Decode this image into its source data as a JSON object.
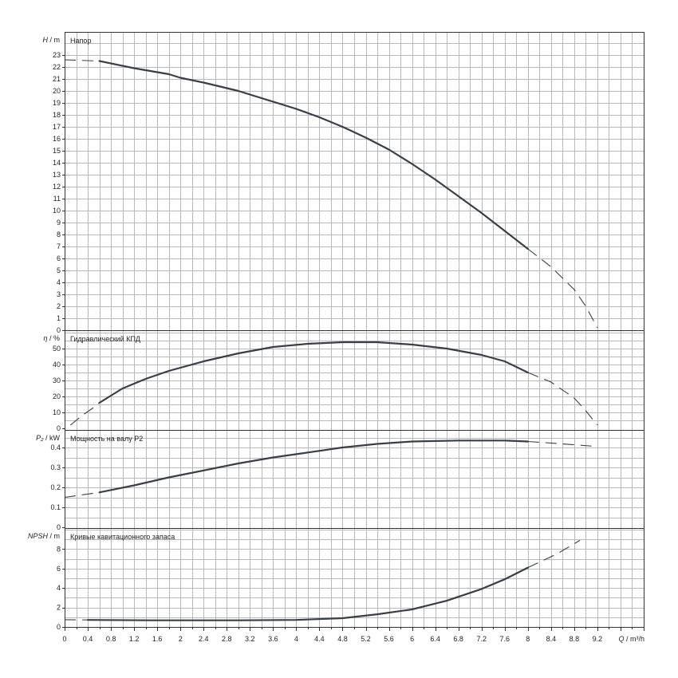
{
  "chart_data": {
    "type": "line",
    "x_axis": {
      "label_var": "Q",
      "label_unit": "m³/h",
      "range": [
        0,
        10
      ],
      "ticks": [
        "0",
        "0.4",
        "0.8",
        "1.2",
        "1.6",
        "2",
        "2.4",
        "2.8",
        "3.2",
        "3.6",
        "4",
        "4.4",
        "4.8",
        "5.2",
        "5.6",
        "6",
        "6.4",
        "6.8",
        "7.2",
        "7.6",
        "8",
        "8.4",
        "8.8",
        "9.2"
      ]
    },
    "grid": true,
    "panels": [
      {
        "key": "head",
        "title": "Напор",
        "ylabel_var": "H",
        "ylabel_unit": "m",
        "ylim": [
          0,
          25
        ],
        "yticks": [
          "0",
          "1",
          "2",
          "3",
          "4",
          "5",
          "6",
          "7",
          "8",
          "9",
          "10",
          "11",
          "12",
          "13",
          "14",
          "15",
          "16",
          "17",
          "18",
          "19",
          "20",
          "21",
          "22",
          "23"
        ],
        "series": [
          {
            "style": "dashed",
            "points": [
              [
                0,
                22.6
              ],
              [
                0.6,
                22.5
              ]
            ]
          },
          {
            "style": "solid",
            "points": [
              [
                0.6,
                22.5
              ],
              [
                1.2,
                21.9
              ],
              [
                1.8,
                21.4
              ],
              [
                2.0,
                21.1
              ],
              [
                2.4,
                20.7
              ],
              [
                3.0,
                20.0
              ],
              [
                3.6,
                19.1
              ],
              [
                4.0,
                18.5
              ],
              [
                4.4,
                17.8
              ],
              [
                4.8,
                17.0
              ],
              [
                5.2,
                16.1
              ],
              [
                5.6,
                15.1
              ],
              [
                6.0,
                13.9
              ],
              [
                6.4,
                12.6
              ],
              [
                6.8,
                11.2
              ],
              [
                7.2,
                9.8
              ],
              [
                7.6,
                8.3
              ],
              [
                8.0,
                6.8
              ]
            ]
          },
          {
            "style": "dashed",
            "points": [
              [
                8.0,
                6.8
              ],
              [
                8.4,
                5.3
              ],
              [
                8.8,
                3.4
              ],
              [
                9.0,
                2.0
              ],
              [
                9.2,
                0.2
              ]
            ]
          }
        ]
      },
      {
        "key": "efficiency",
        "title": "Гидравлический КПД",
        "ylabel_var": "η",
        "ylabel_unit": "%",
        "ylim": [
          0,
          60
        ],
        "yticks": [
          "0",
          "10",
          "20",
          "30",
          "40",
          "50"
        ],
        "series": [
          {
            "style": "dashed",
            "points": [
              [
                0.1,
                2
              ],
              [
                0.3,
                8
              ],
              [
                0.5,
                13
              ],
              [
                0.6,
                16
              ]
            ]
          },
          {
            "style": "solid",
            "points": [
              [
                0.6,
                16
              ],
              [
                1.0,
                25
              ],
              [
                1.4,
                31
              ],
              [
                1.8,
                36
              ],
              [
                2.4,
                42
              ],
              [
                3.0,
                47
              ],
              [
                3.6,
                51
              ],
              [
                4.2,
                53
              ],
              [
                4.8,
                54
              ],
              [
                5.4,
                54
              ],
              [
                6.0,
                52.5
              ],
              [
                6.6,
                50
              ],
              [
                7.2,
                46
              ],
              [
                7.6,
                42
              ],
              [
                8.0,
                35
              ]
            ]
          },
          {
            "style": "dashed",
            "points": [
              [
                8.0,
                35
              ],
              [
                8.4,
                29
              ],
              [
                8.8,
                19
              ],
              [
                9.0,
                11
              ],
              [
                9.2,
                2
              ]
            ]
          }
        ]
      },
      {
        "key": "power",
        "title": "Мощность на валу P2",
        "ylabel_var": "P₂",
        "ylabel_unit": "kW",
        "ylim": [
          0,
          0.45
        ],
        "yticks": [
          "0",
          "0.1",
          "0.2",
          "0.3",
          "0.4"
        ],
        "series": [
          {
            "style": "dashed",
            "points": [
              [
                0,
                0.15
              ],
              [
                0.6,
                0.175
              ]
            ]
          },
          {
            "style": "solid",
            "points": [
              [
                0.6,
                0.175
              ],
              [
                1.2,
                0.21
              ],
              [
                1.8,
                0.25
              ],
              [
                2.4,
                0.285
              ],
              [
                3.0,
                0.32
              ],
              [
                3.6,
                0.35
              ],
              [
                4.2,
                0.375
              ],
              [
                4.8,
                0.4
              ],
              [
                5.4,
                0.418
              ],
              [
                6.0,
                0.43
              ],
              [
                6.8,
                0.435
              ],
              [
                7.6,
                0.435
              ],
              [
                8.0,
                0.43
              ]
            ]
          },
          {
            "style": "dashed",
            "points": [
              [
                8.0,
                0.43
              ],
              [
                8.6,
                0.418
              ],
              [
                9.2,
                0.405
              ]
            ]
          }
        ]
      },
      {
        "key": "npsh",
        "title": "Кривые кавитационного запаса",
        "ylabel_var": "NPSH",
        "ylabel_unit": "m",
        "ylim": [
          0,
          10
        ],
        "yticks": [
          "0",
          "2",
          "4",
          "6",
          "8"
        ],
        "series": [
          {
            "style": "dashed",
            "points": [
              [
                0,
                0.75
              ],
              [
                0.4,
                0.72
              ]
            ]
          },
          {
            "style": "solid",
            "points": [
              [
                0.4,
                0.72
              ],
              [
                1.5,
                0.68
              ],
              [
                3.0,
                0.68
              ],
              [
                4.0,
                0.72
              ],
              [
                4.8,
                0.9
              ],
              [
                5.4,
                1.3
              ],
              [
                6.0,
                1.8
              ],
              [
                6.6,
                2.7
              ],
              [
                7.2,
                3.9
              ],
              [
                7.6,
                4.9
              ],
              [
                8.0,
                6.1
              ]
            ]
          },
          {
            "style": "dashed",
            "points": [
              [
                8.0,
                6.1
              ],
              [
                8.5,
                7.5
              ],
              [
                8.9,
                8.9
              ]
            ]
          }
        ]
      }
    ]
  }
}
